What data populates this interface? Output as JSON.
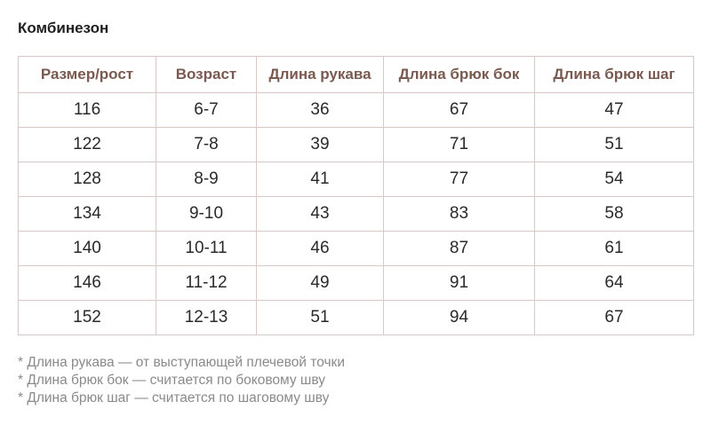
{
  "title": "Комбинезон",
  "table": {
    "headers": [
      "Размер/рост",
      "Возраст",
      "Длина рукава",
      "Длина брюк бок",
      "Длина брюк шаг"
    ],
    "rows": [
      [
        "116",
        "6-7",
        "36",
        "67",
        "47"
      ],
      [
        "122",
        "7-8",
        "39",
        "71",
        "51"
      ],
      [
        "128",
        "8-9",
        "41",
        "77",
        "54"
      ],
      [
        "134",
        "9-10",
        "43",
        "83",
        "58"
      ],
      [
        "140",
        "10-11",
        "46",
        "87",
        "61"
      ],
      [
        "146",
        "11-12",
        "49",
        "91",
        "64"
      ],
      [
        "152",
        "12-13",
        "51",
        "94",
        "67"
      ]
    ]
  },
  "notes": [
    "* Длина рукава — от выступающей плечевой точки",
    "* Длина брюк бок — считается по боковому шву",
    "* Длина брюк шаг — считается по шаговому шву"
  ],
  "colors": {
    "header_text": "#7a5a50",
    "border": "#d9c8c5",
    "note_text": "#8a8a8a"
  }
}
